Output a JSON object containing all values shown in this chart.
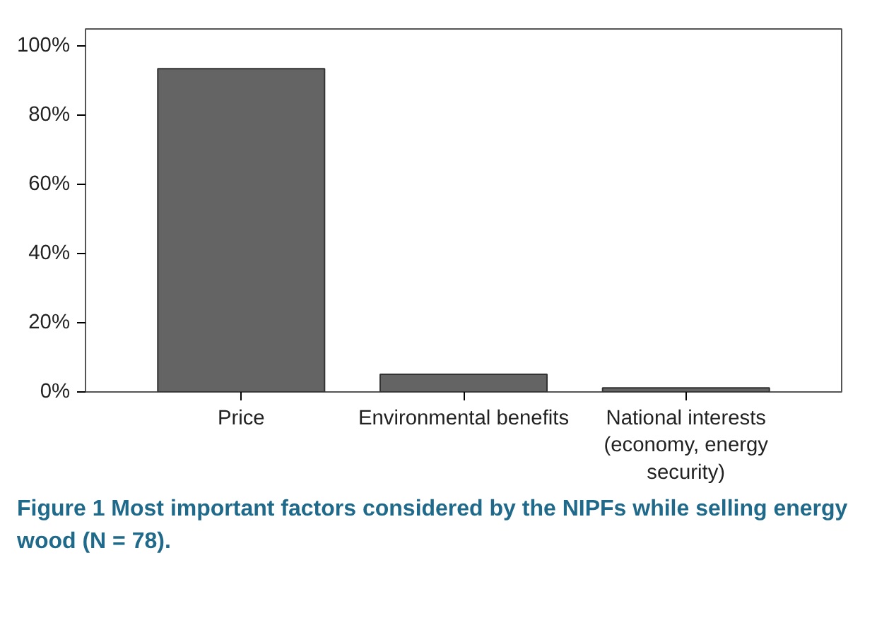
{
  "chart_data": {
    "type": "bar",
    "title": "Figure 1 Most important factors considered by the NIPFs while selling energy wood (N = 78).",
    "categories": [
      "Price",
      "Environmental benefits",
      "National interests\n(economy, energy\nsecurity)"
    ],
    "values": [
      93.5,
      5.1,
      1.2
    ],
    "color": "#646464",
    "ylim": [
      0,
      105
    ],
    "yticks": [
      {
        "value": 0,
        "label": "0%"
      },
      {
        "value": 20,
        "label": "20%"
      },
      {
        "value": 40,
        "label": "40%"
      },
      {
        "value": 60,
        "label": "60%"
      },
      {
        "value": 80,
        "label": "80%"
      },
      {
        "value": 100,
        "label": "100%"
      }
    ],
    "grid": false
  }
}
